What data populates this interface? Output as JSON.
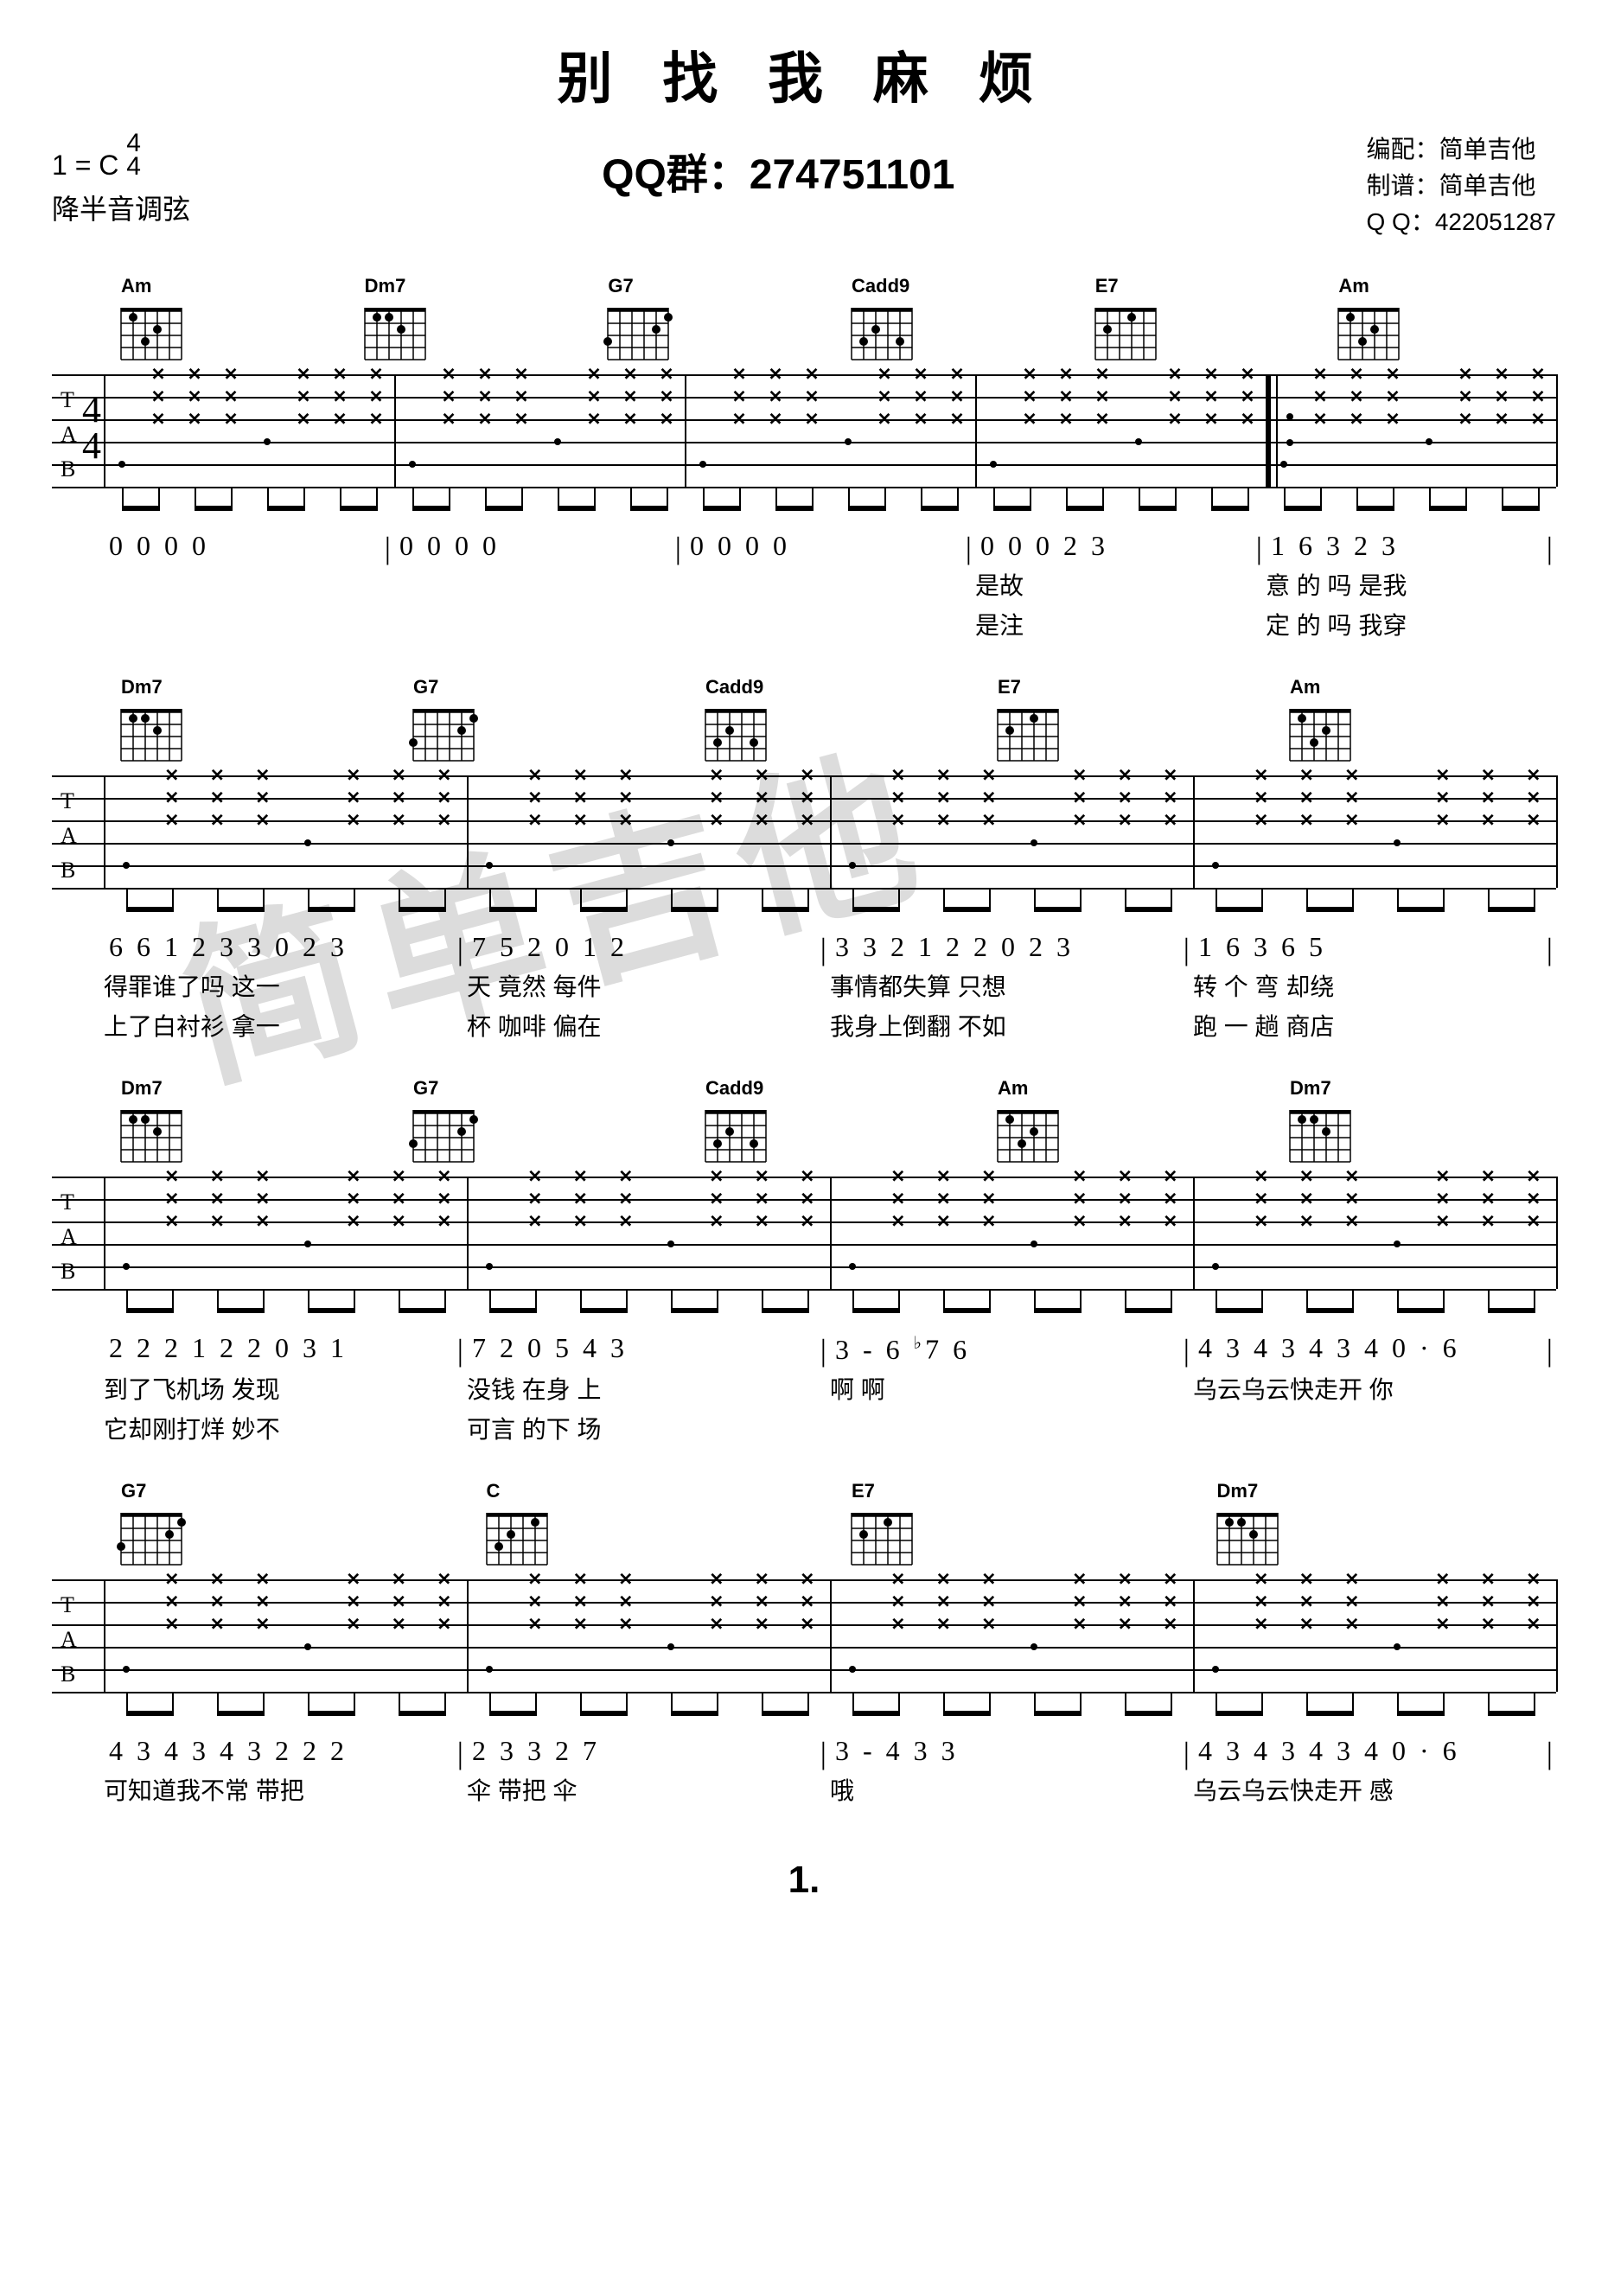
{
  "title": "别 找 我 麻 烦",
  "header": {
    "key": "1 = C",
    "timesig_num": "4",
    "timesig_den": "4",
    "tuning_note": "降半音调弦",
    "qq_group_label": "QQ群：",
    "qq_group": "274751101",
    "credit_arrange_label": "编配：",
    "credit_arrange": "简单吉他",
    "credit_score_label": "制谱：",
    "credit_score": "简单吉他",
    "credit_qq_label": "Q Q：",
    "credit_qq": "422051287"
  },
  "watermark": "简单吉他",
  "page_number": "1.",
  "chords": {
    "Am": "Am",
    "Dm7": "Dm7",
    "G7": "G7",
    "Cadd9": "Cadd9",
    "E7": "E7",
    "C": "C"
  },
  "systems": [
    {
      "chords": [
        "Am",
        "Dm7",
        "G7",
        "Cadd9",
        "E7",
        "Am"
      ],
      "chord_positions": [
        0,
        1,
        2,
        3,
        3.5,
        4
      ],
      "numbers": [
        "0 0 0 0",
        "0 0 0 0",
        "0 0 0 0",
        "0 0 0 2 3",
        "1 6 3 2 3"
      ],
      "lyrics1": [
        "",
        "",
        "",
        "是故",
        "意 的 吗 是我"
      ],
      "lyrics2": [
        "",
        "",
        "",
        "是注",
        "定 的 吗 我穿"
      ]
    },
    {
      "chords": [
        "Dm7",
        "G7",
        "Cadd9",
        "E7",
        "Am"
      ],
      "numbers": [
        "6 6 1 2 3 3 0 2 3",
        "7 5 2 0 1 2",
        "3 3 2 1 2 2 0 2 3",
        "1 6 3 6 5"
      ],
      "lyrics1": [
        "得罪谁了吗 这一",
        "天 竟然 每件",
        "事情都失算 只想",
        "转 个 弯 却绕"
      ],
      "lyrics2": [
        "上了白衬衫 拿一",
        "杯 咖啡 偏在",
        "我身上倒翻 不如",
        "跑 一 趟 商店"
      ]
    },
    {
      "chords": [
        "Dm7",
        "G7",
        "Cadd9",
        "Am",
        "Dm7"
      ],
      "numbers": [
        "2 2 2 1 2 2 0 3 1",
        "7 2 0 5 4 3",
        "3 - 6 b7 6",
        "4 3 4 3 4 3 4 0 · 6"
      ],
      "lyrics1": [
        "到了飞机场 发现",
        "没钱 在身 上",
        "  啊 啊",
        "乌云乌云快走开 你"
      ],
      "lyrics2": [
        "它却刚打烊 妙不",
        "可言 的下 场",
        "",
        ""
      ]
    },
    {
      "chords": [
        "G7",
        "C",
        "E7",
        "Dm7"
      ],
      "numbers": [
        "4 3 4 3 4 3 2 2 2",
        "2 3 3 2 7",
        "3 - 4 3 3",
        "4 3 4 3 4 3 4 0 · 6"
      ],
      "lyrics1": [
        "可知道我不常 带把",
        "伞  带把 伞",
        "  哦",
        "乌云乌云快走开 感"
      ],
      "lyrics2": [
        "",
        "",
        "",
        ""
      ]
    }
  ],
  "colors": {
    "text": "#000000",
    "background": "#ffffff",
    "watermark": "#dcdcdc",
    "staff_line": "#000000"
  },
  "fonts": {
    "title_size": 64,
    "header_size": 32,
    "qq_size": 48,
    "number_size": 32,
    "lyric_size": 28,
    "chord_size": 22
  }
}
